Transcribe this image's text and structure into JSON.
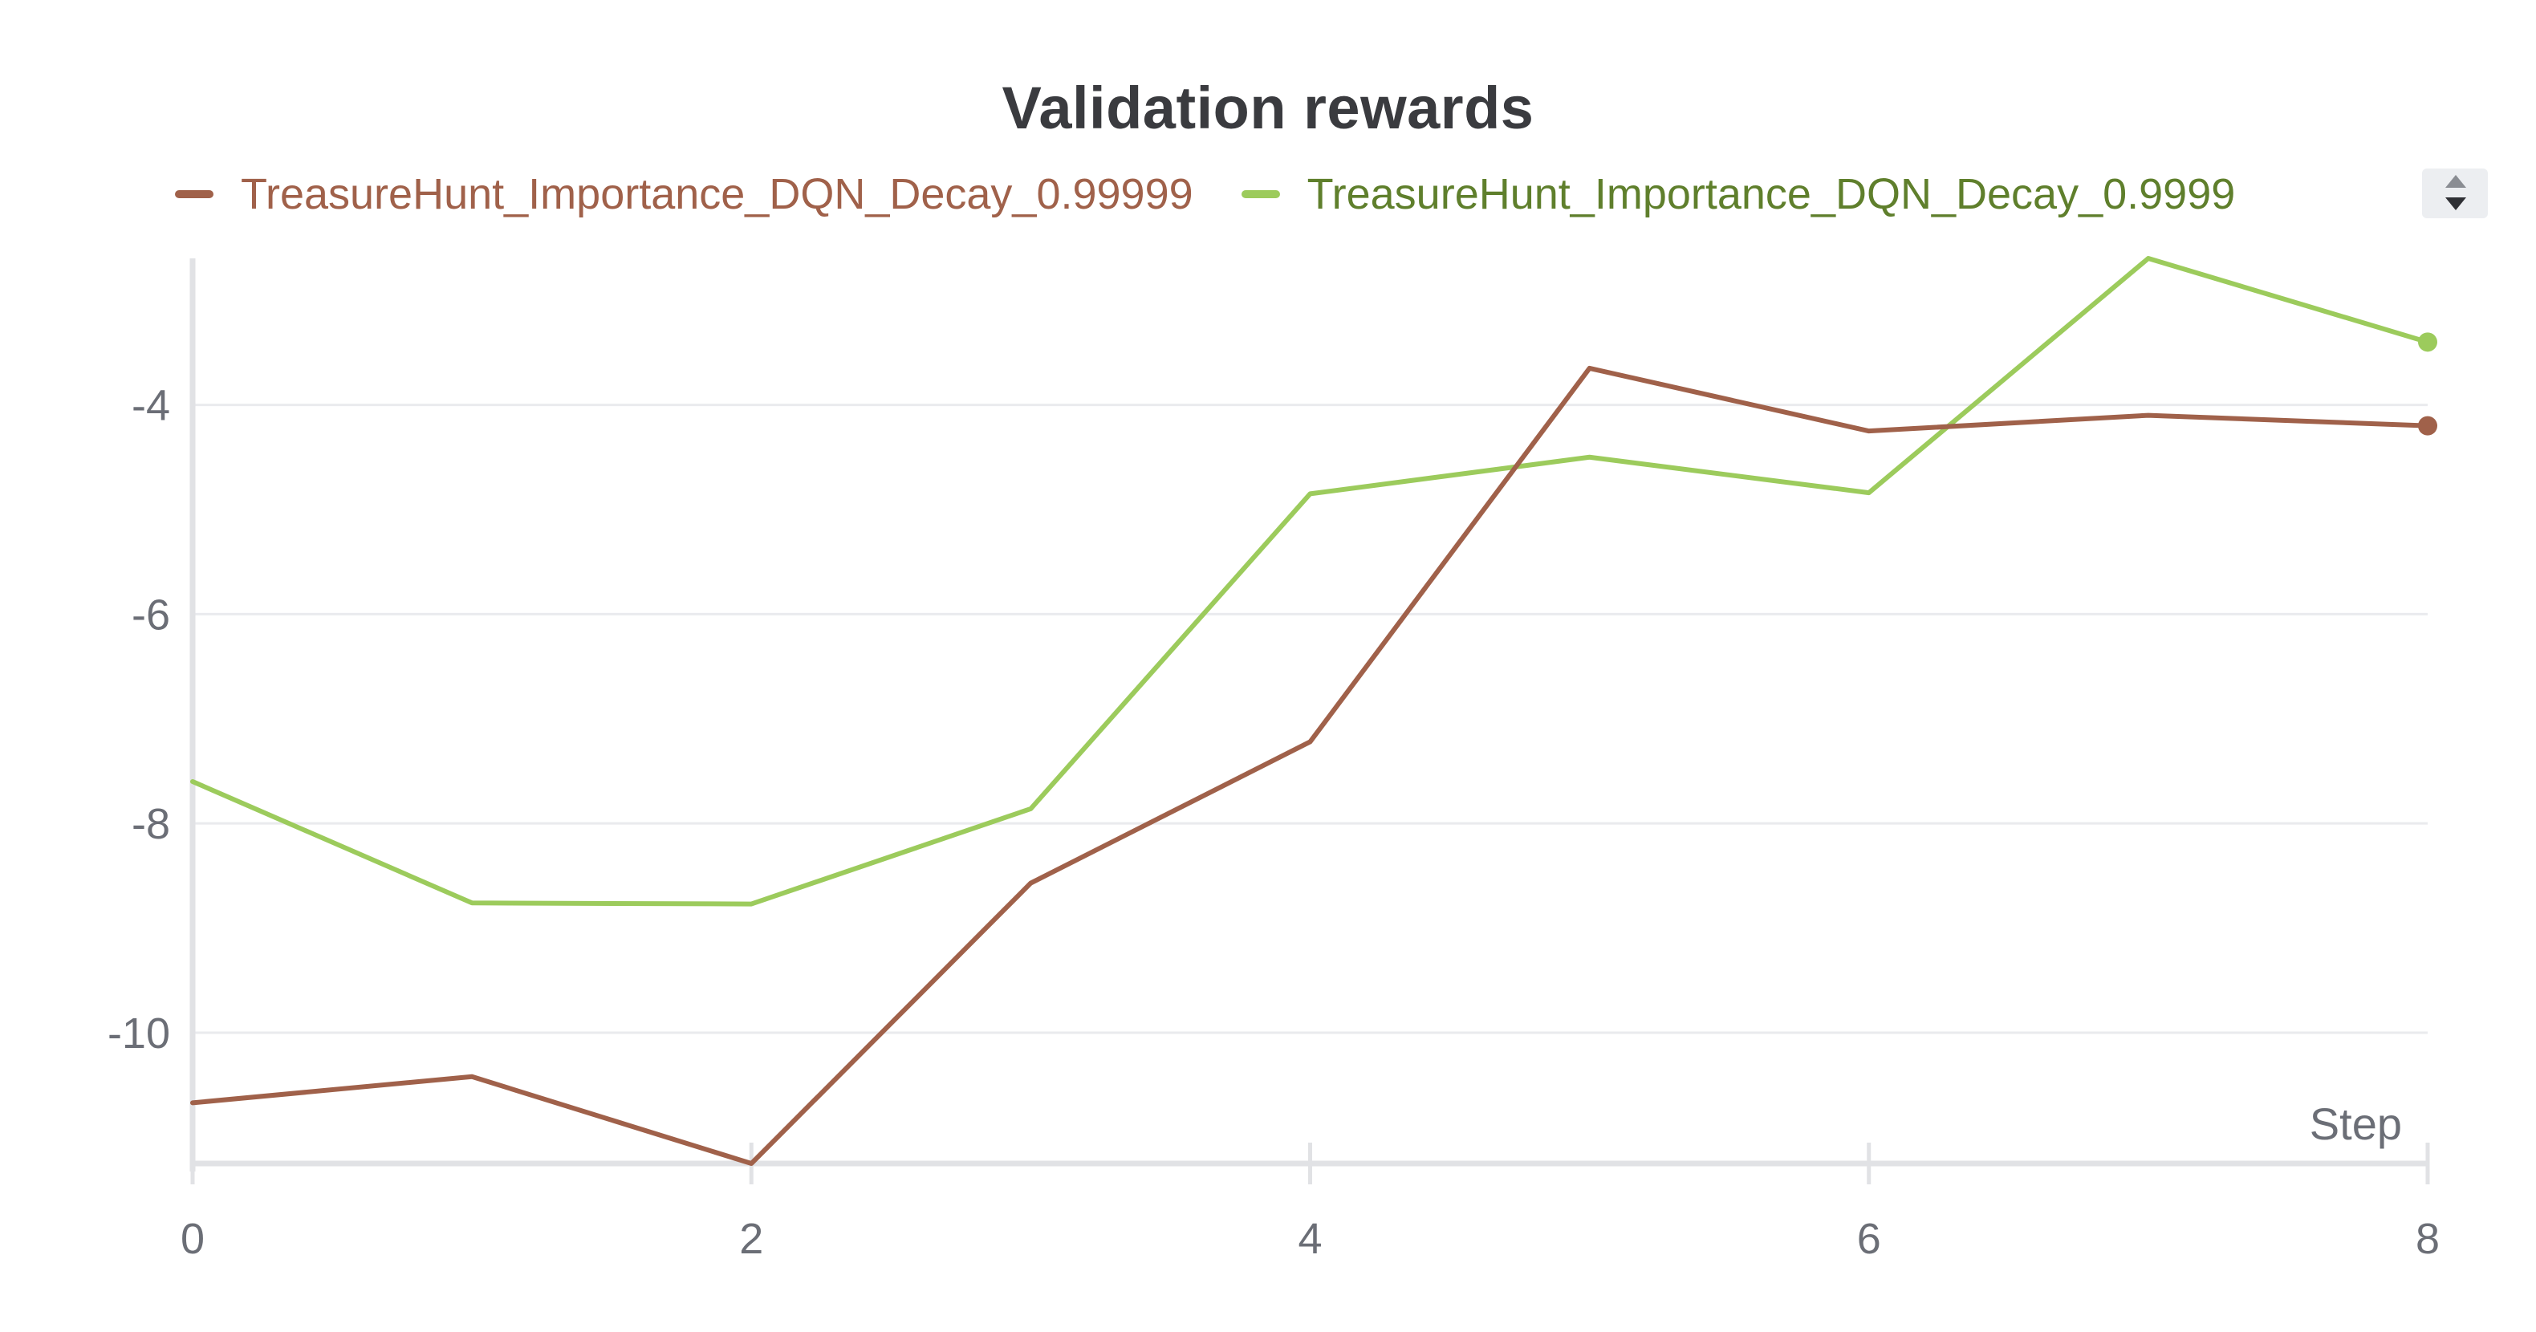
{
  "chart_data": {
    "type": "line",
    "title": "Validation rewards",
    "xlabel": "Step",
    "ylabel": "",
    "xlim": [
      0,
      8
    ],
    "ylim": [
      -11.25,
      -2.6
    ],
    "x_ticks": [
      0,
      2,
      4,
      6,
      8
    ],
    "y_ticks": [
      -10,
      -8,
      -6,
      -4
    ],
    "x_tick_labels": [
      "0",
      "2",
      "4",
      "6",
      "8"
    ],
    "y_tick_labels": [
      "-10",
      "-8",
      "-6",
      "-4"
    ],
    "grid": true,
    "legend_position": "top-left",
    "series": [
      {
        "name": "TreasureHunt_Importance_DQN_Decay_0.99999",
        "color": "#a0614a",
        "label_color": "#a0614a",
        "x": [
          0,
          1,
          2,
          3,
          4,
          5,
          6,
          7,
          8
        ],
        "values": [
          -10.67,
          -10.42,
          -11.25,
          -8.57,
          -7.22,
          -3.65,
          -4.25,
          -4.1,
          -4.2
        ]
      },
      {
        "name": "TreasureHunt_Importance_DQN_Decay_0.9999",
        "color": "#9ccb5c",
        "label_color": "#5f7f2c",
        "x": [
          0,
          1,
          2,
          3,
          4,
          5,
          6,
          7,
          8
        ],
        "values": [
          -7.6,
          -8.76,
          -8.77,
          -7.86,
          -4.85,
          -4.5,
          -4.84,
          -2.6,
          -3.4
        ]
      }
    ]
  },
  "legend": {
    "scroll_up_icon": "chevron-up-icon",
    "scroll_down_icon": "chevron-down-icon"
  },
  "colors": {
    "title": "#3a3b3f",
    "axis": "#e1e2e5",
    "grid": "#eaebee",
    "tick_label": "#6b6e76"
  }
}
